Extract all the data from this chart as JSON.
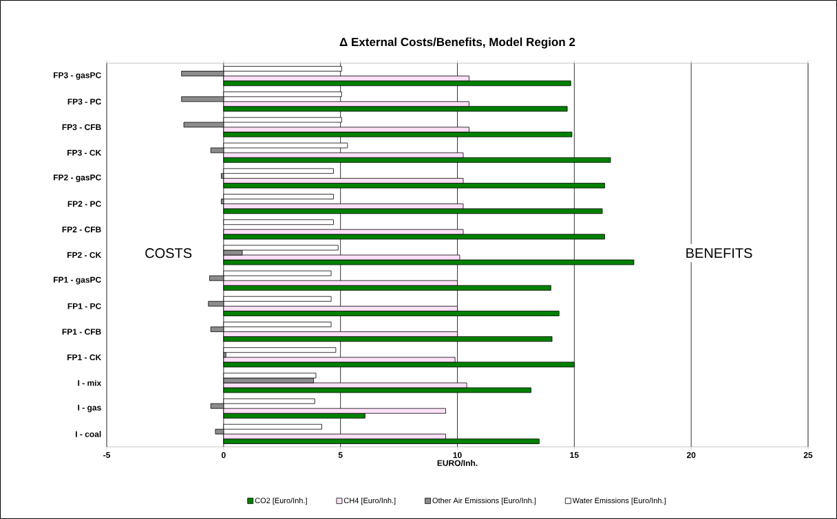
{
  "chart_data": {
    "type": "bar",
    "orientation": "horizontal",
    "title": "Δ External Costs/Benefits, Model Region 2",
    "xlabel": "EURO/Inh.",
    "categories": [
      "FP3 - gasPC",
      "FP3 - PC",
      "FP3 - CFB",
      "FP3 - CK",
      "FP2 - gasPC",
      "FP2 - PC",
      "FP2 - CFB",
      "FP2 - CK",
      "FP1 - gasPC",
      "FP1 - PC",
      "FP1 - CFB",
      "FP1 - CK",
      "I - mix",
      "I - gas",
      "I - coal"
    ],
    "series": [
      {
        "name": "CO2 [Euro/Inh.]",
        "color": "#008000",
        "values": [
          14.85,
          14.7,
          14.9,
          16.55,
          16.3,
          16.2,
          16.3,
          17.55,
          14.0,
          14.35,
          14.05,
          15.0,
          13.15,
          6.05,
          13.5
        ]
      },
      {
        "name": "CH4 [Euro/Inh.]",
        "color": "#ffe0f8",
        "values": [
          10.5,
          10.5,
          10.5,
          10.25,
          10.25,
          10.25,
          10.25,
          10.1,
          10.0,
          10.0,
          10.0,
          9.9,
          10.4,
          9.5,
          9.5
        ]
      },
      {
        "name": "Other Air Emissions [Euro/Inh.]",
        "color": "#8c8c8c",
        "values": [
          -1.8,
          -1.8,
          -1.7,
          -0.55,
          -0.1,
          -0.1,
          null,
          0.8,
          -0.6,
          -0.65,
          -0.55,
          0.1,
          3.85,
          -0.55,
          -0.35
        ]
      },
      {
        "name": "Water Emissions [Euro/Inh.]",
        "color": "#ffffff",
        "values": [
          5.05,
          5.05,
          5.05,
          5.3,
          4.7,
          4.7,
          4.7,
          4.9,
          4.6,
          4.6,
          4.6,
          4.8,
          3.95,
          3.9,
          4.2
        ]
      }
    ],
    "xlim": [
      -5,
      25
    ],
    "xticks": [
      -5,
      0,
      5,
      10,
      15,
      20,
      25
    ],
    "grid": "x",
    "legend": "bottom",
    "annotations": [
      "COSTS",
      "BENEFITS"
    ]
  }
}
